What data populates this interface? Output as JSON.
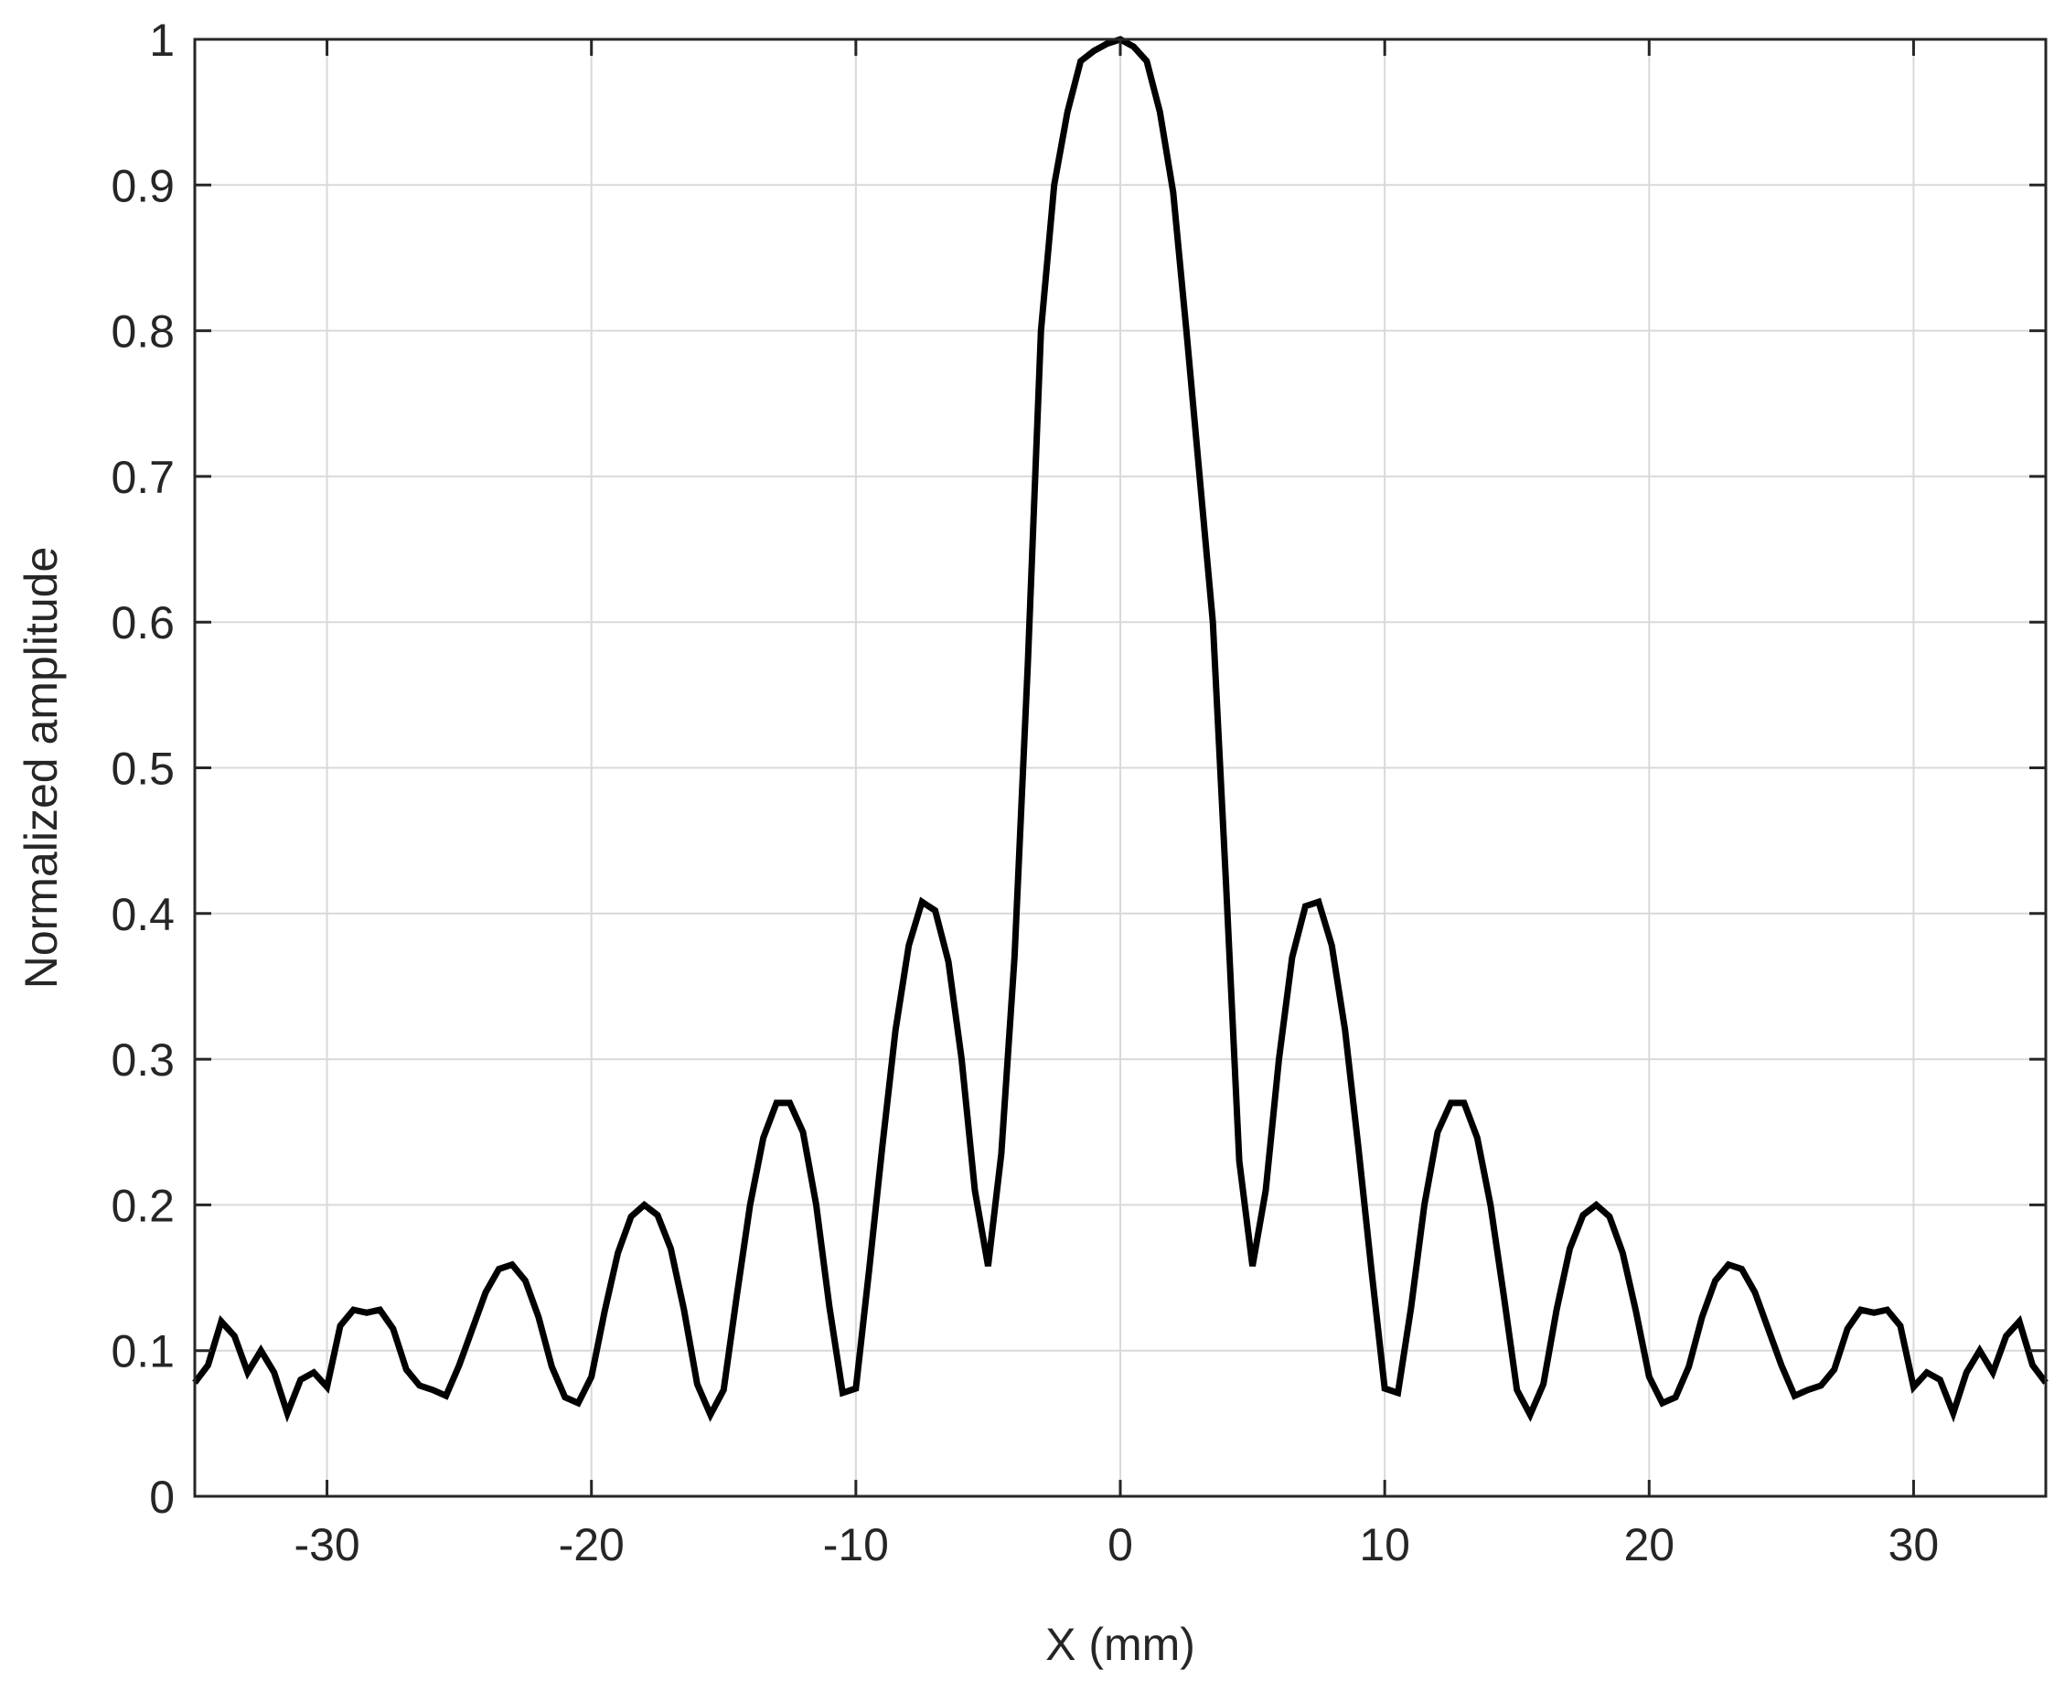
{
  "chart_data": {
    "type": "line",
    "title": "",
    "xlabel": "X (mm)",
    "ylabel": "Normalized amplitude",
    "xlim": [
      -35,
      35
    ],
    "ylim": [
      0,
      1
    ],
    "xticks": [
      -30,
      -20,
      -10,
      0,
      10,
      20,
      30
    ],
    "xtick_labels": [
      "-30",
      "-20",
      "-10",
      "0",
      "10",
      "20",
      "30"
    ],
    "yticks": [
      0,
      0.1,
      0.2,
      0.3,
      0.4,
      0.5,
      0.6,
      0.7,
      0.8,
      0.9,
      1
    ],
    "ytick_labels": [
      "0",
      "0.1",
      "0.2",
      "0.3",
      "0.4",
      "0.5",
      "0.6",
      "0.7",
      "0.8",
      "0.9",
      "1"
    ],
    "grid": true,
    "line_color": "#000000",
    "axis_color": "#262626",
    "grid_color": "#d9d9d9",
    "series": [
      {
        "x": [
          -35,
          -34.5,
          -34,
          -33.5,
          -33,
          -32.5,
          -32,
          -31.5,
          -31,
          -30.5,
          -30,
          -29.5,
          -29,
          -28.5,
          -28,
          -27.5,
          -27,
          -26.5,
          -26,
          -25.5,
          -25,
          -24.5,
          -24,
          -23.5,
          -23,
          -22.5,
          -22,
          -21.5,
          -21,
          -20.5,
          -20,
          -19.5,
          -19,
          -18.5,
          -18,
          -17.5,
          -17,
          -16.5,
          -16,
          -15.5,
          -15,
          -14.5,
          -14,
          -13.5,
          -13,
          -12.5,
          -12,
          -11.5,
          -11,
          -10.5,
          -10,
          -9.5,
          -9,
          -8.5,
          -8,
          -7.5,
          -7,
          -6.5,
          -6,
          -5.5,
          -5,
          -4.5,
          -4,
          -3.5,
          -3,
          -2.5,
          -2,
          -1.5,
          -1,
          -0.5,
          0,
          0.5,
          1,
          1.5,
          2,
          2.5,
          3,
          3.5,
          4,
          4.5,
          5,
          5.5,
          6,
          6.5,
          7,
          7.5,
          8,
          8.5,
          9,
          9.5,
          10,
          10.5,
          11,
          11.5,
          12,
          12.5,
          13,
          13.5,
          14,
          14.5,
          15,
          15.5,
          16,
          16.5,
          17,
          17.5,
          18,
          18.5,
          19,
          19.5,
          20,
          20.5,
          21,
          21.5,
          22,
          22.5,
          23,
          23.5,
          24,
          24.5,
          25,
          25.5,
          26,
          26.5,
          27,
          27.5,
          28,
          28.5,
          29,
          29.5,
          30,
          30.5,
          31,
          31.5,
          32,
          32.5,
          33,
          33.5,
          34,
          34.5,
          35
        ],
        "y": [
          0.078,
          0.09,
          0.12,
          0.11,
          0.085,
          0.1,
          0.085,
          0.057,
          0.08,
          0.085,
          0.075,
          0.117,
          0.128,
          0.126,
          0.128,
          0.115,
          0.087,
          0.076,
          0.073,
          0.069,
          0.09,
          0.115,
          0.14,
          0.156,
          0.159,
          0.148,
          0.123,
          0.089,
          0.068,
          0.064,
          0.082,
          0.127,
          0.167,
          0.192,
          0.2,
          0.193,
          0.17,
          0.128,
          0.077,
          0.056,
          0.073,
          0.138,
          0.2,
          0.246,
          0.27,
          0.27,
          0.25,
          0.2,
          0.13,
          0.071,
          0.074,
          0.155,
          0.24,
          0.32,
          0.378,
          0.408,
          0.402,
          0.367,
          0.3,
          0.21,
          0.158,
          0.235,
          0.37,
          0.57,
          0.8,
          0.9,
          0.95,
          0.985,
          0.992,
          0.997,
          1.0,
          0.995,
          0.985,
          0.95,
          0.895,
          0.8,
          0.7,
          0.6,
          0.42,
          0.23,
          0.158,
          0.21,
          0.3,
          0.37,
          0.405,
          0.408,
          0.378,
          0.32,
          0.24,
          0.155,
          0.074,
          0.071,
          0.13,
          0.2,
          0.25,
          0.27,
          0.27,
          0.246,
          0.2,
          0.138,
          0.073,
          0.056,
          0.077,
          0.128,
          0.17,
          0.193,
          0.2,
          0.192,
          0.167,
          0.127,
          0.082,
          0.064,
          0.068,
          0.089,
          0.123,
          0.148,
          0.159,
          0.156,
          0.14,
          0.115,
          0.09,
          0.069,
          0.073,
          0.076,
          0.087,
          0.115,
          0.128,
          0.126,
          0.128,
          0.117,
          0.075,
          0.085,
          0.08,
          0.057,
          0.085,
          0.1,
          0.085,
          0.11,
          0.12,
          0.09,
          0.078
        ]
      }
    ]
  }
}
